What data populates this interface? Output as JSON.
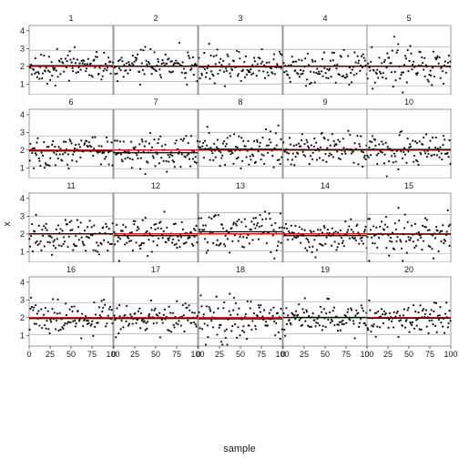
{
  "chart_data": {
    "type": "scatter",
    "layout": "facet grid of 20 small-multiple panels, 4 rows by 5 columns",
    "xlabel": "sample",
    "ylabel": "x",
    "xlim": [
      0,
      100
    ],
    "ylim": [
      0.4,
      4.3
    ],
    "x_ticks": [
      "0",
      "25",
      "50",
      "75",
      "100"
    ],
    "y_ticks": [
      "1",
      "2",
      "3",
      "4"
    ],
    "y_tick_values": [
      1,
      2,
      3,
      4
    ],
    "x_tick_values": [
      0,
      25,
      50,
      75,
      100
    ],
    "grid": true,
    "reference_line": {
      "y": 2.0,
      "color": "#d40000"
    },
    "panel_line_color": "#000000",
    "point_color": "#111111",
    "points_per_panel": 100,
    "panels": [
      {
        "label": "1",
        "mean": 2.04,
        "sd": 0.45,
        "gray_lines": [
          1.15,
          2.9
        ]
      },
      {
        "label": "2",
        "mean": 2.01,
        "sd": 0.45,
        "gray_lines": [
          1.15,
          2.9
        ]
      },
      {
        "label": "3",
        "mean": 1.97,
        "sd": 0.5,
        "gray_lines": [
          1.0,
          2.95
        ]
      },
      {
        "label": "4",
        "mean": 2.0,
        "sd": 0.48,
        "gray_lines": [
          1.05,
          2.95
        ]
      },
      {
        "label": "5",
        "mean": 2.0,
        "sd": 0.58,
        "gray_lines": [
          0.9,
          3.1
        ]
      },
      {
        "label": "6",
        "mean": 1.95,
        "sd": 0.42,
        "gray_lines": [
          1.1,
          2.8
        ]
      },
      {
        "label": "7",
        "mean": 1.85,
        "sd": 0.5,
        "gray_lines": [
          0.95,
          2.8
        ]
      },
      {
        "label": "8",
        "mean": 2.05,
        "sd": 0.5,
        "gray_lines": [
          1.1,
          3.0
        ]
      },
      {
        "label": "9",
        "mean": 2.03,
        "sd": 0.48,
        "gray_lines": [
          1.1,
          2.95
        ]
      },
      {
        "label": "10",
        "mean": 2.04,
        "sd": 0.45,
        "gray_lines": [
          1.15,
          2.95
        ]
      },
      {
        "label": "11",
        "mean": 2.0,
        "sd": 0.5,
        "gray_lines": [
          1.0,
          3.0
        ]
      },
      {
        "label": "12",
        "mean": 1.9,
        "sd": 0.48,
        "gray_lines": [
          1.0,
          2.85
        ]
      },
      {
        "label": "13",
        "mean": 2.12,
        "sd": 0.55,
        "gray_lines": [
          1.05,
          3.2
        ]
      },
      {
        "label": "14",
        "mean": 1.9,
        "sd": 0.45,
        "gray_lines": [
          1.0,
          2.75
        ]
      },
      {
        "label": "15",
        "mean": 1.98,
        "sd": 0.58,
        "gray_lines": [
          0.9,
          3.1
        ]
      },
      {
        "label": "16",
        "mean": 1.95,
        "sd": 0.45,
        "gray_lines": [
          1.05,
          2.85
        ]
      },
      {
        "label": "17",
        "mean": 1.95,
        "sd": 0.42,
        "gray_lines": [
          1.1,
          2.8
        ]
      },
      {
        "label": "18",
        "mean": 1.93,
        "sd": 0.55,
        "gray_lines": [
          0.85,
          3.0
        ]
      },
      {
        "label": "19",
        "mean": 2.02,
        "sd": 0.45,
        "gray_lines": [
          1.1,
          2.9
        ]
      },
      {
        "label": "20",
        "mean": 1.97,
        "sd": 0.45,
        "gray_lines": [
          1.05,
          2.9
        ]
      }
    ]
  }
}
